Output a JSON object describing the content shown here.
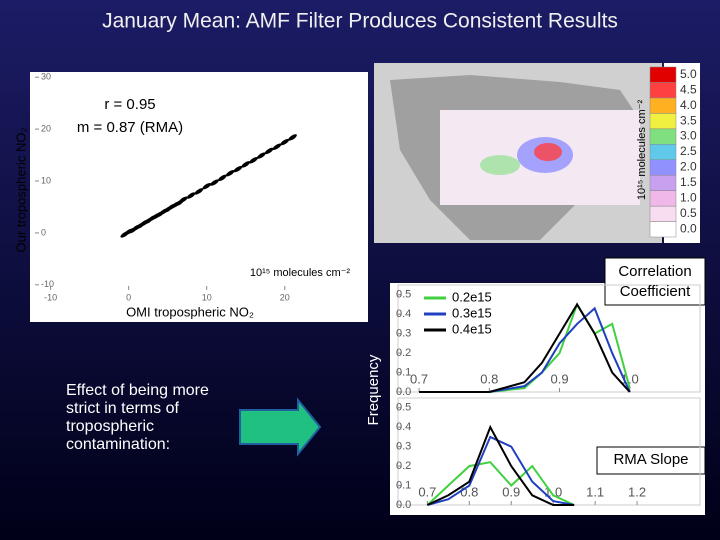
{
  "title": "January Mean: AMF Filter Produces Consistent Results",
  "note": "Effect of being more strict in terms of tropospheric contamination:",
  "shared_ylabel": "Frequency",
  "chart_data": [
    {
      "type": "scatter",
      "xlabel": "OMI tropospheric NO₂",
      "ylabel": "Our tropospheric NO₂",
      "units": "10¹⁵ molecules cm⁻²",
      "annotations": [
        "r = 0.95",
        "m = 0.87 (RMA)"
      ],
      "color": "#000000",
      "xlim": [
        -12,
        29
      ],
      "xticks": [
        -10,
        0,
        10,
        20
      ],
      "ylim": [
        -11,
        31
      ],
      "yticks": [
        -10,
        0,
        10,
        20,
        30
      ],
      "x": [
        -0.5,
        0,
        0.5,
        1,
        1.5,
        2,
        2.5,
        3,
        3.5,
        4,
        4.5,
        5,
        5.5,
        6,
        6.5,
        7,
        8,
        9,
        10,
        11,
        12,
        13,
        14,
        15,
        16,
        17,
        18,
        19,
        20,
        21
      ],
      "y": [
        -0.3,
        0.2,
        0.5,
        1,
        1.4,
        1.9,
        2.3,
        2.8,
        3.2,
        3.6,
        4.1,
        4.5,
        5,
        5.4,
        5.8,
        6.4,
        7.2,
        8,
        9,
        9.7,
        10.6,
        11.5,
        12.3,
        13.2,
        14,
        14.9,
        15.8,
        16.6,
        17.5,
        18.4
      ]
    },
    {
      "type": "map",
      "units": "10¹⁵ molecules cm⁻²",
      "ticks": [
        {
          "value": 0,
          "label": "0.0"
        },
        0.5,
        {
          "value": 1,
          "label": "1.0"
        },
        1.5,
        {
          "value": 2,
          "label": "2.0"
        },
        2.5,
        {
          "value": 3,
          "label": "3.0"
        },
        3.5,
        {
          "value": 4,
          "label": "4.0"
        },
        4.5,
        {
          "value": 5,
          "label": "5.0"
        }
      ],
      "colors": [
        "#ffffff",
        "#f8dcf0",
        "#f0b8e8",
        "#c8a0f0",
        "#9090ff",
        "#60c8e8",
        "#80e080",
        "#f0f040",
        "#ffb020",
        "#ff4040",
        "#e00000"
      ]
    },
    {
      "type": "line",
      "xlabel": "Correlation Coefficient",
      "legend": "upper left",
      "xlim": [
        0.67,
        1.1
      ],
      "xticks": [
        0.7,
        0.8,
        0.9,
        {
          "value": 1,
          "label": "1.0"
        }
      ],
      "ylim": [
        0,
        0.55
      ],
      "yticks": [
        {
          "value": 0,
          "label": "0.0"
        },
        0.1,
        0.2,
        0.3,
        0.4,
        0.5
      ],
      "x": [
        0.7,
        0.75,
        0.8,
        0.85,
        0.875,
        0.9,
        0.925,
        0.95,
        0.975,
        1.0
      ],
      "series": [
        {
          "name": "0.2e15",
          "color": "#40d040",
          "values": [
            0,
            0,
            0,
            0.02,
            0.1,
            0.2,
            0.45,
            0.3,
            0.35,
            0.02
          ]
        },
        {
          "name": "0.3e15",
          "color": "#2040c0",
          "values": [
            0,
            0,
            0,
            0.03,
            0.1,
            0.25,
            0.35,
            0.43,
            0.2,
            0
          ]
        },
        {
          "name": "0.4e15",
          "color": "#000000",
          "values": [
            0,
            0,
            0,
            0.05,
            0.15,
            0.3,
            0.45,
            0.3,
            0.1,
            0
          ]
        }
      ]
    },
    {
      "type": "line",
      "xlabel": "RMA Slope",
      "xlim": [
        0.63,
        1.35
      ],
      "xticks": [
        0.7,
        0.8,
        0.9,
        {
          "value": 1,
          "label": "1.0"
        },
        1.1,
        1.2
      ],
      "ylim": [
        0,
        0.55
      ],
      "yticks": [
        {
          "value": 0,
          "label": "0.0"
        },
        0.1,
        0.2,
        0.3,
        0.4,
        0.5
      ],
      "x": [
        0.7,
        0.75,
        0.8,
        0.85,
        0.9,
        0.95,
        1.0,
        1.05
      ],
      "series": [
        {
          "color": "#40d040",
          "values": [
            0,
            0.1,
            0.2,
            0.22,
            0.1,
            0.2,
            0.05,
            0
          ]
        },
        {
          "color": "#2040c0",
          "values": [
            0,
            0.03,
            0.1,
            0.35,
            0.3,
            0.12,
            0.02,
            0
          ]
        },
        {
          "color": "#000000",
          "values": [
            0,
            0.05,
            0.12,
            0.4,
            0.2,
            0.05,
            0,
            0
          ]
        }
      ]
    }
  ]
}
